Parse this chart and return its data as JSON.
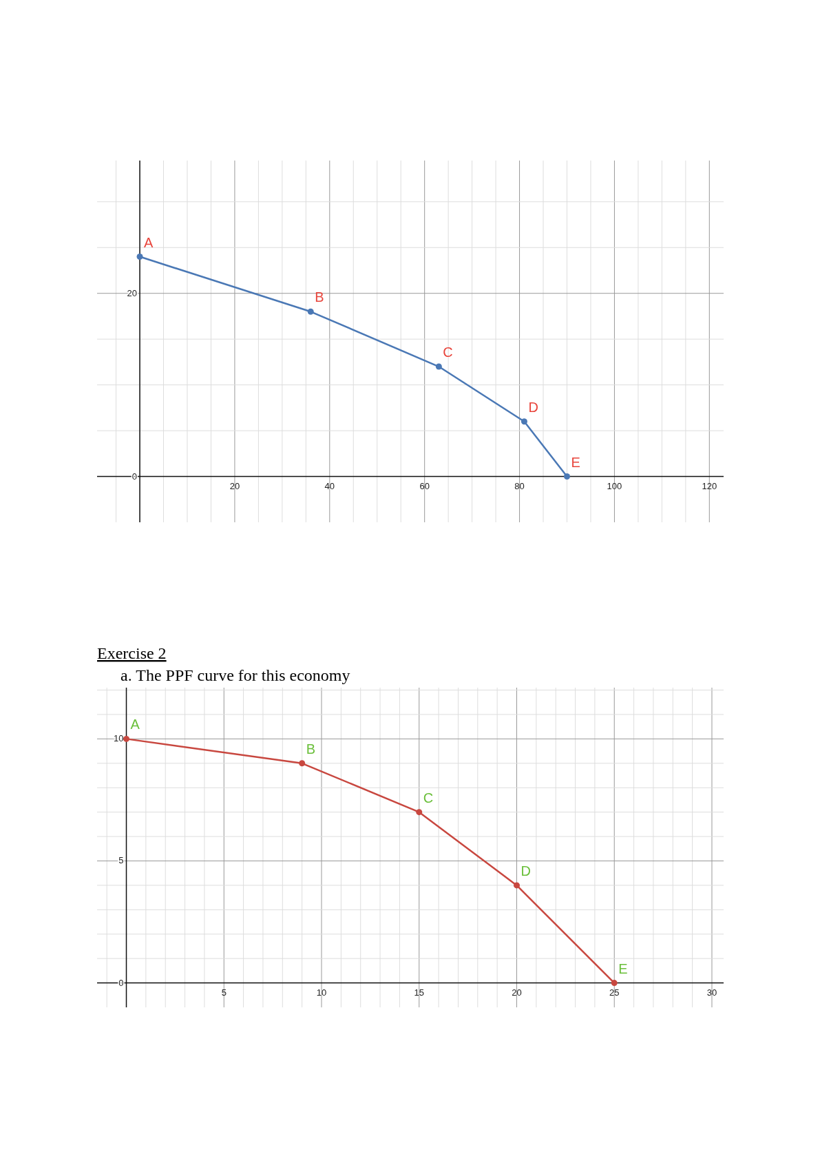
{
  "chart_data": [
    {
      "type": "line",
      "x": [
        0,
        36,
        63,
        81,
        90
      ],
      "series": [
        {
          "color": "#4a78b5",
          "values": [
            24,
            18,
            12,
            6,
            0
          ]
        }
      ],
      "marker": "circle",
      "line_style": "solid",
      "grid": true,
      "xlim": [
        -9,
        123
      ],
      "ylim": [
        -5,
        34.5
      ],
      "xticks": [
        {
          "value": -5,
          "label": null
        },
        {
          "value": 0,
          "label": null
        },
        {
          "value": 5,
          "label": null
        },
        {
          "value": 10,
          "label": null
        },
        {
          "value": 15,
          "label": null
        },
        20,
        {
          "value": 25,
          "label": null
        },
        {
          "value": 30,
          "label": null
        },
        {
          "value": 35,
          "label": null
        },
        40,
        {
          "value": 45,
          "label": null
        },
        {
          "value": 50,
          "label": null
        },
        {
          "value": 55,
          "label": null
        },
        60,
        {
          "value": 65,
          "label": null
        },
        {
          "value": 70,
          "label": null
        },
        {
          "value": 75,
          "label": null
        },
        80,
        {
          "value": 85,
          "label": null
        },
        {
          "value": 90,
          "label": null
        },
        {
          "value": 95,
          "label": null
        },
        100,
        {
          "value": 105,
          "label": null
        },
        {
          "value": 110,
          "label": null
        },
        {
          "value": 115,
          "label": null
        },
        120
      ],
      "yticks": [
        0,
        {
          "value": 5,
          "label": null
        },
        {
          "value": 10,
          "label": null
        },
        {
          "value": 15,
          "label": null
        },
        20,
        {
          "value": 25,
          "label": null
        },
        {
          "value": 30,
          "label": null
        }
      ],
      "annotations": [
        {
          "text": "A",
          "x": 0,
          "y": 24
        },
        {
          "text": "B",
          "x": 36,
          "y": 18
        },
        {
          "text": "C",
          "x": 63,
          "y": 12
        },
        {
          "text": "D",
          "x": 81,
          "y": 6
        },
        {
          "text": "E",
          "x": 90,
          "y": 0
        }
      ]
    },
    {
      "type": "line",
      "title": "Exercise 2 ",
      "subtitle": "a.  The PPF curve for this economy",
      "x": [
        0,
        9,
        15,
        20,
        25
      ],
      "series": [
        {
          "color": "#c8473f",
          "values": [
            10,
            9,
            7,
            4,
            0
          ]
        }
      ],
      "marker": "circle",
      "line_style": "solid",
      "grid": true,
      "xlim": [
        -1.5,
        30.6
      ],
      "ylim": [
        -1,
        12.1
      ],
      "xticks": [
        {
          "value": -1,
          "label": null
        },
        {
          "value": 0,
          "label": null
        },
        {
          "value": 1,
          "label": null
        },
        {
          "value": 2,
          "label": null
        },
        {
          "value": 3,
          "label": null
        },
        {
          "value": 4,
          "label": null
        },
        5,
        {
          "value": 6,
          "label": null
        },
        {
          "value": 7,
          "label": null
        },
        {
          "value": 8,
          "label": null
        },
        {
          "value": 9,
          "label": null
        },
        10,
        {
          "value": 11,
          "label": null
        },
        {
          "value": 12,
          "label": null
        },
        {
          "value": 13,
          "label": null
        },
        {
          "value": 14,
          "label": null
        },
        15,
        {
          "value": 16,
          "label": null
        },
        {
          "value": 17,
          "label": null
        },
        {
          "value": 18,
          "label": null
        },
        {
          "value": 19,
          "label": null
        },
        20,
        {
          "value": 21,
          "label": null
        },
        {
          "value": 22,
          "label": null
        },
        {
          "value": 23,
          "label": null
        },
        {
          "value": 24,
          "label": null
        },
        25,
        {
          "value": 26,
          "label": null
        },
        {
          "value": 27,
          "label": null
        },
        {
          "value": 28,
          "label": null
        },
        {
          "value": 29,
          "label": null
        },
        30
      ],
      "yticks": [
        0,
        {
          "value": 1,
          "label": null
        },
        {
          "value": 2,
          "label": null
        },
        {
          "value": 3,
          "label": null
        },
        {
          "value": 4,
          "label": null
        },
        5,
        {
          "value": 6,
          "label": null
        },
        {
          "value": 7,
          "label": null
        },
        {
          "value": 8,
          "label": null
        },
        {
          "value": 9,
          "label": null
        },
        10,
        {
          "value": 11,
          "label": null
        },
        {
          "value": 12,
          "label": null
        }
      ],
      "annotations": [
        {
          "text": "A",
          "x": 0,
          "y": 10
        },
        {
          "text": "B",
          "x": 9,
          "y": 9
        },
        {
          "text": "C",
          "x": 15,
          "y": 7
        },
        {
          "text": "D",
          "x": 20,
          "y": 4
        },
        {
          "text": "E",
          "x": 25,
          "y": 0
        }
      ]
    }
  ]
}
